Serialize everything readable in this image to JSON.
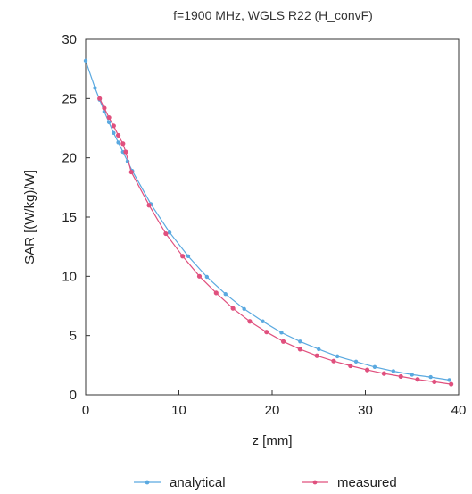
{
  "chart_data": {
    "type": "line",
    "title": "f=1900 MHz, WGLS R22 (H_convF)",
    "xlabel": "z [mm]",
    "ylabel": "SAR [(W/kg)/W]",
    "xlim": [
      0,
      40
    ],
    "ylim": [
      0,
      30
    ],
    "xticks": [
      "0",
      "10",
      "20",
      "30",
      "40"
    ],
    "yticks": [
      "0",
      "5",
      "10",
      "15",
      "20",
      "25",
      "30"
    ],
    "grid": false,
    "legend_position": "bottom",
    "series": [
      {
        "name": "analytical",
        "color": "#5aa9e0",
        "x": [
          0,
          1,
          1.5,
          2,
          2.5,
          3,
          3.5,
          4,
          4.5,
          5,
          7,
          9,
          11,
          13,
          15,
          17,
          19,
          21,
          23,
          25,
          27,
          29,
          31,
          33,
          35,
          37,
          39
        ],
        "y": [
          28.2,
          25.9,
          24.9,
          23.9,
          23.0,
          22.1,
          21.3,
          20.5,
          19.7,
          18.9,
          16.1,
          13.7,
          11.7,
          9.95,
          8.5,
          7.25,
          6.2,
          5.25,
          4.5,
          3.85,
          3.25,
          2.8,
          2.35,
          2.0,
          1.7,
          1.5,
          1.25
        ]
      },
      {
        "name": "measured",
        "color": "#e0507e",
        "x": [
          1.5,
          2.0,
          2.5,
          3.0,
          3.5,
          4.0,
          4.3,
          4.9,
          6.8,
          8.6,
          10.4,
          12.2,
          14.0,
          15.8,
          17.6,
          19.4,
          21.2,
          23.0,
          24.8,
          26.6,
          28.4,
          30.2,
          32.0,
          33.8,
          35.6,
          37.4,
          39.2
        ],
        "y": [
          25.0,
          24.2,
          23.4,
          22.7,
          21.9,
          21.2,
          20.5,
          18.8,
          16.0,
          13.6,
          11.7,
          10.0,
          8.6,
          7.3,
          6.2,
          5.3,
          4.5,
          3.85,
          3.3,
          2.85,
          2.45,
          2.1,
          1.8,
          1.55,
          1.3,
          1.1,
          0.9
        ]
      }
    ]
  }
}
